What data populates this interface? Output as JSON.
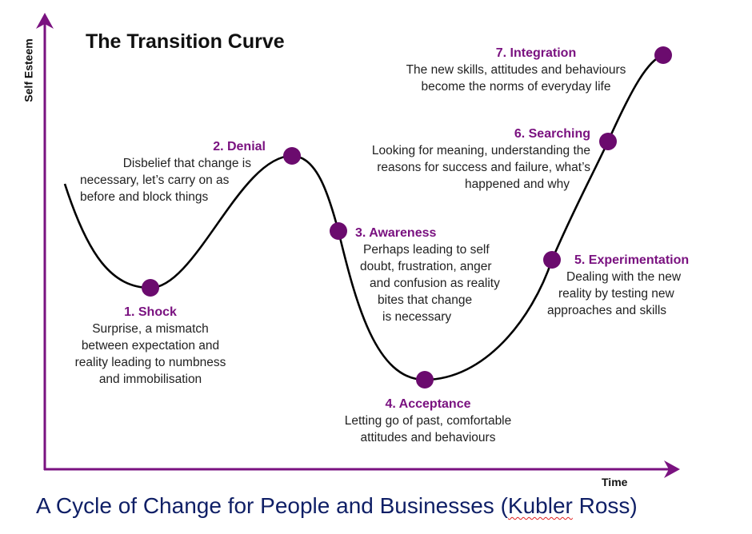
{
  "title": "The Transition Curve",
  "y_axis_label": "Self Esteem",
  "x_axis_label": "Time",
  "caption_before": "A Cycle of Change for People and Businesses (",
  "caption_flagged": "Kubler",
  "caption_after": " Ross)",
  "colors": {
    "axis": "#7a1280",
    "dot": "#6b0b6e",
    "heading": "#7a1280",
    "caption": "#0f1f66",
    "curve": "#000000"
  },
  "stages": [
    {
      "heading": "1. Shock",
      "lines": [
        "Surprise, a mismatch",
        "between expectation and",
        "reality leading to numbness",
        "and immobilisation"
      ]
    },
    {
      "heading": "2. Denial",
      "lines": [
        "Disbelief that change is",
        "necessary, let’s carry on as",
        "before and block things"
      ]
    },
    {
      "heading": "3. Awareness",
      "lines": [
        "Perhaps leading to self",
        "doubt, frustration, anger",
        "and confusion as reality",
        "bites that change",
        "is necessary"
      ]
    },
    {
      "heading": "4. Acceptance",
      "lines": [
        "Letting go of past, comfortable",
        "attitudes and behaviours"
      ]
    },
    {
      "heading": "5. Experimentation",
      "lines": [
        "Dealing with the new",
        "reality by testing new",
        "approaches and skills"
      ]
    },
    {
      "heading": "6. Searching",
      "lines": [
        "Looking for meaning, understanding the",
        "reasons for success and failure, what’s",
        "happened and why"
      ]
    },
    {
      "heading": "7. Integration",
      "lines": [
        "The new skills, attitudes and behaviours",
        "become the norms of everyday life"
      ]
    }
  ]
}
